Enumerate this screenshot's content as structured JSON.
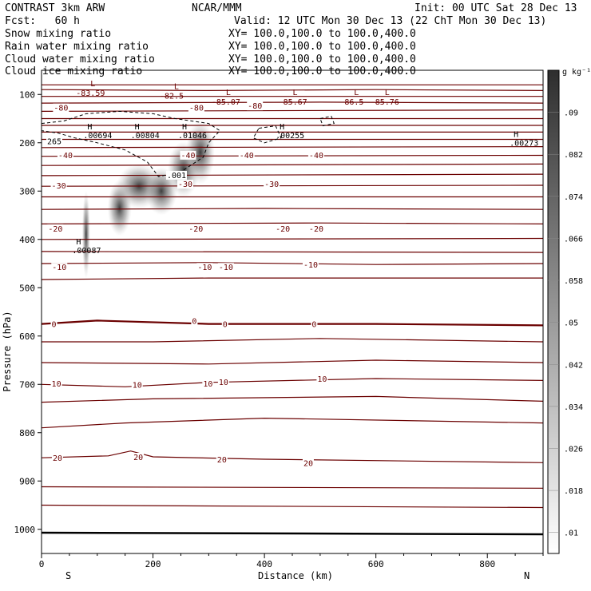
{
  "header": {
    "model": "CONTRAST  3km ARW",
    "center": "NCAR/MMM",
    "init": "Init: 00 UTC Sat 28 Dec 13",
    "fcst": "Fcst:   60 h",
    "valid": "Valid: 12 UTC Mon 30 Dec 13 (22 ChT Mon 30 Dec 13)",
    "fields": [
      {
        "name": "Snow mixing ratio",
        "xy": "XY= 100.0,100.0 to 100.0,400.0",
        "color": "#000000"
      },
      {
        "name": "Rain water mixing ratio",
        "xy": "XY= 100.0,100.0 to 100.0,400.0",
        "color": "#e00000"
      },
      {
        "name": "Cloud water mixing ratio",
        "xy": "XY= 100.0,100.0 to 100.0,400.0",
        "color": "#0000cc"
      },
      {
        "name": "Cloud ice mixing ratio",
        "xy": "XY= 100.0,100.0 to 100.0,400.0",
        "color": "#000000"
      }
    ]
  },
  "chart_data": {
    "type": "contour",
    "xlabel": "Distance (km)",
    "ylabel": "Pressure (hPa)",
    "xlim": [
      0,
      900
    ],
    "ylim": [
      1050,
      50
    ],
    "x_ticks": [
      0,
      200,
      400,
      600,
      800
    ],
    "y_ticks": [
      100,
      200,
      300,
      400,
      500,
      600,
      700,
      800,
      900,
      1000
    ],
    "x_end_labels": {
      "left": "S",
      "right": "N"
    },
    "colorbar": {
      "unit": "g kg⁻¹",
      "levels": [
        ".01",
        ".018",
        ".026",
        ".034",
        ".042",
        ".05",
        ".058",
        ".066",
        ".074",
        ".082",
        ".09"
      ],
      "range": [
        0.006,
        0.098
      ]
    },
    "temperature_contours": [
      {
        "level": "-80",
        "x": 22,
        "p": 127
      },
      {
        "level": "-80",
        "x": 265,
        "p": 127
      },
      {
        "level": "-80",
        "x": 370,
        "p": 123
      },
      {
        "level": "-40",
        "x": 30,
        "p": 225
      },
      {
        "level": "-40",
        "x": 250,
        "p": 225
      },
      {
        "level": "-40",
        "x": 355,
        "p": 225
      },
      {
        "level": "-40",
        "x": 480,
        "p": 225
      },
      {
        "level": "-30",
        "x": 18,
        "p": 288
      },
      {
        "level": "-30",
        "x": 245,
        "p": 285
      },
      {
        "level": "-30",
        "x": 400,
        "p": 285
      },
      {
        "level": "-20",
        "x": 12,
        "p": 377
      },
      {
        "level": "-20",
        "x": 264,
        "p": 377
      },
      {
        "level": "-20",
        "x": 420,
        "p": 377
      },
      {
        "level": "-20",
        "x": 480,
        "p": 377
      },
      {
        "level": "-10",
        "x": 19,
        "p": 457
      },
      {
        "level": "-10",
        "x": 280,
        "p": 457
      },
      {
        "level": "-10",
        "x": 318,
        "p": 457
      },
      {
        "level": "-10",
        "x": 470,
        "p": 452
      },
      {
        "level": "0",
        "x": 18,
        "p": 575
      },
      {
        "level": "0",
        "x": 270,
        "p": 568
      },
      {
        "level": "0",
        "x": 325,
        "p": 575
      },
      {
        "level": "0",
        "x": 485,
        "p": 575
      },
      {
        "level": "10",
        "x": 18,
        "p": 698
      },
      {
        "level": "10",
        "x": 163,
        "p": 700
      },
      {
        "level": "10",
        "x": 290,
        "p": 698
      },
      {
        "level": "10",
        "x": 318,
        "p": 695
      },
      {
        "level": "10",
        "x": 495,
        "p": 688
      },
      {
        "level": "20",
        "x": 20,
        "p": 852
      },
      {
        "level": "20",
        "x": 165,
        "p": 850
      },
      {
        "level": "20",
        "x": 315,
        "p": 855
      },
      {
        "level": "20",
        "x": 470,
        "p": 862
      }
    ],
    "lows": [
      {
        "label": "L",
        "value": "-83.59",
        "x": 62,
        "p": 70
      },
      {
        "label": "L",
        "value": "-82.5",
        "x": 212,
        "p": 76
      },
      {
        "label": "L",
        "value": "-85.07",
        "x": 305,
        "p": 88
      },
      {
        "label": "L",
        "value": "-85.67",
        "x": 425,
        "p": 88
      },
      {
        "label": "L",
        "value": "-86.5",
        "x": 535,
        "p": 88
      },
      {
        "label": "L",
        "value": "-85.76",
        "x": 590,
        "p": 88
      }
    ],
    "highs": [
      {
        "label": "H",
        "value": ".00694",
        "x": 75,
        "p": 172
      },
      {
        "label": "H",
        "value": ".00804",
        "x": 160,
        "p": 172
      },
      {
        "label": "H",
        "value": ".01046",
        "x": 245,
        "p": 172
      },
      {
        "label": "H",
        "value": ".00255",
        "x": 420,
        "p": 172
      },
      {
        "label": "H",
        "value": ".00273",
        "x": 840,
        "p": 188
      },
      {
        "label": "H",
        "value": ".00087",
        "x": 55,
        "p": 410
      }
    ],
    "contour_labels": [
      {
        "value": "265",
        "x": 10,
        "p": 203
      },
      {
        "value": ".001",
        "x": 225,
        "p": 273
      }
    ]
  }
}
